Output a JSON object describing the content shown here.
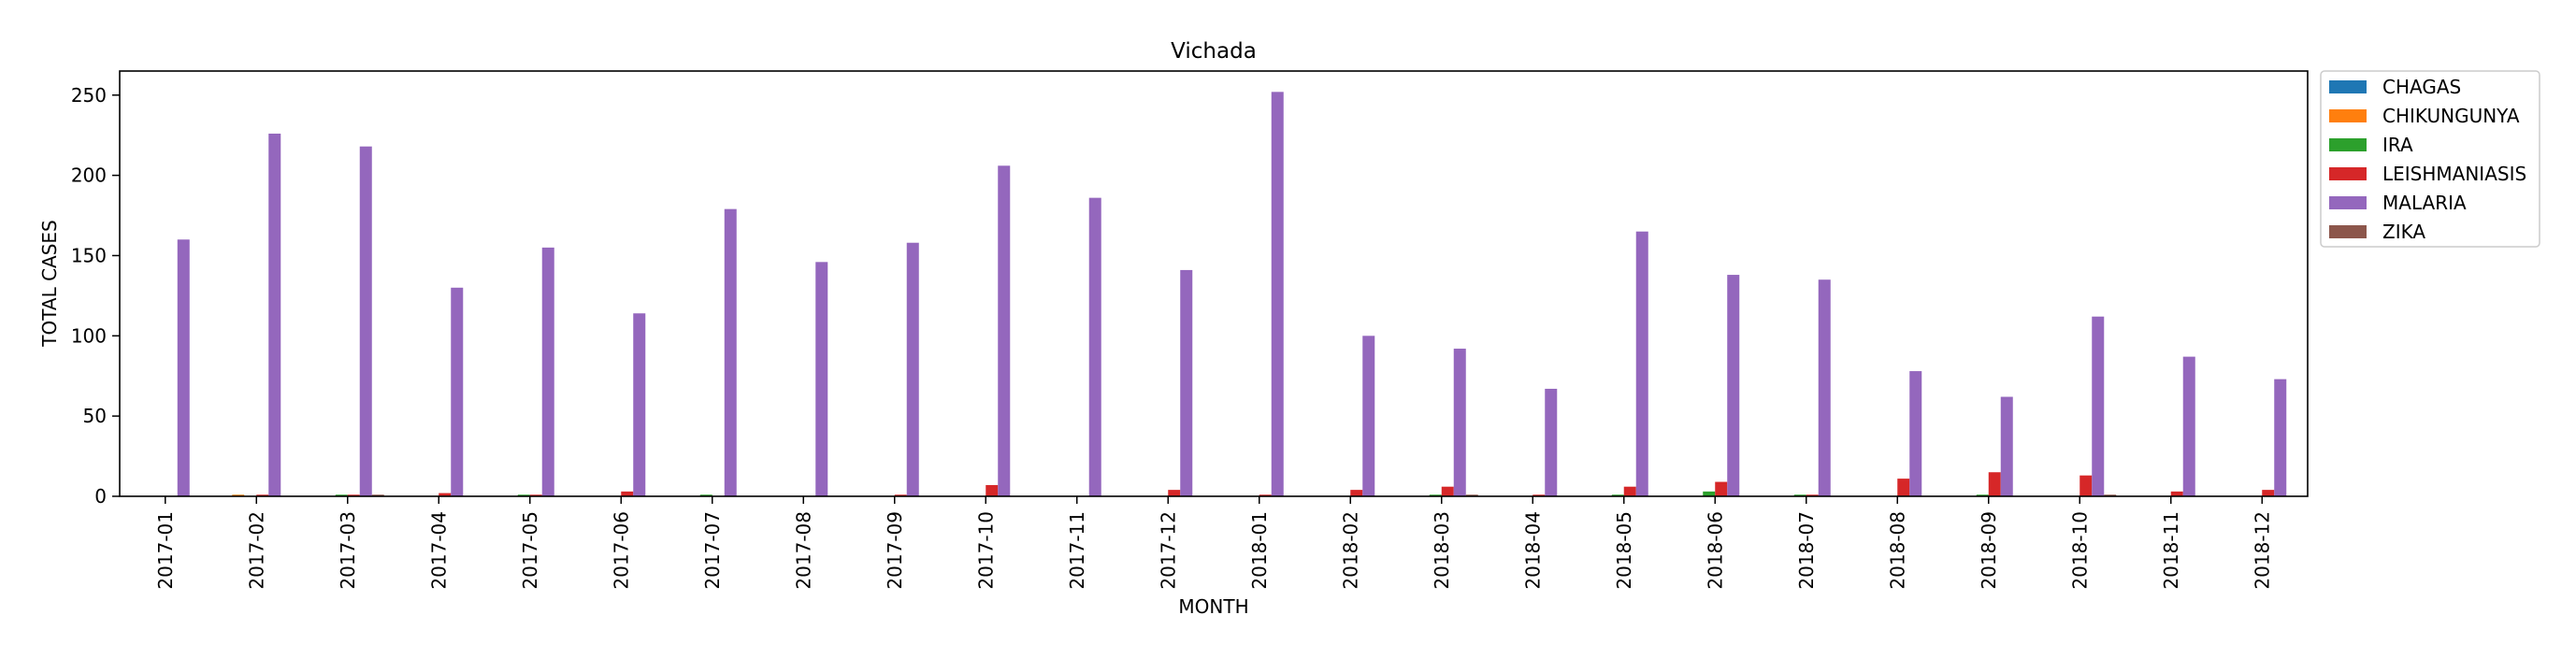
{
  "chart_data": {
    "type": "bar",
    "title": "Vichada",
    "xlabel": "MONTH",
    "ylabel": "TOTAL CASES",
    "ylim": [
      0,
      265
    ],
    "yticks": [
      0,
      50,
      100,
      150,
      200,
      250
    ],
    "grid": false,
    "legend_position": "outside-top-right",
    "categories": [
      "2017-01",
      "2017-02",
      "2017-03",
      "2017-04",
      "2017-05",
      "2017-06",
      "2017-07",
      "2017-08",
      "2017-09",
      "2017-10",
      "2017-11",
      "2017-12",
      "2018-01",
      "2018-02",
      "2018-03",
      "2018-04",
      "2018-05",
      "2018-06",
      "2018-07",
      "2018-08",
      "2018-09",
      "2018-10",
      "2018-11",
      "2018-12"
    ],
    "series": [
      {
        "name": "CHAGAS",
        "color": "#1f77b4",
        "values": [
          0,
          0,
          0,
          0,
          0,
          0,
          0,
          0,
          0,
          0,
          0,
          0,
          0,
          0,
          0,
          0,
          0,
          0,
          0,
          0,
          0,
          0,
          0,
          0
        ]
      },
      {
        "name": "CHIKUNGUNYA",
        "color": "#ff7f0e",
        "values": [
          0,
          1,
          0,
          0,
          0,
          0,
          0,
          0,
          0,
          0,
          0,
          0,
          0,
          0,
          0,
          0,
          0,
          0,
          0,
          0,
          0,
          0,
          0,
          0
        ]
      },
      {
        "name": "IRA",
        "color": "#2ca02c",
        "values": [
          0,
          0,
          1,
          0,
          1,
          0,
          1,
          0,
          0,
          0,
          0,
          0,
          0,
          0,
          1,
          0,
          1,
          3,
          1,
          0,
          1,
          0,
          0,
          0
        ]
      },
      {
        "name": "LEISHMANIASIS",
        "color": "#d62728",
        "values": [
          0,
          1,
          1,
          2,
          1,
          3,
          0,
          0,
          1,
          7,
          0,
          4,
          1,
          4,
          6,
          1,
          6,
          9,
          1,
          11,
          15,
          13,
          3,
          4
        ]
      },
      {
        "name": "MALARIA",
        "color": "#9467bd",
        "values": [
          160,
          226,
          218,
          130,
          155,
          114,
          179,
          146,
          158,
          206,
          186,
          141,
          252,
          100,
          92,
          67,
          165,
          138,
          135,
          78,
          62,
          112,
          87,
          73
        ]
      },
      {
        "name": "ZIKA",
        "color": "#8c564b",
        "values": [
          0,
          0,
          1,
          0,
          0,
          0,
          0,
          0,
          0,
          0,
          0,
          0,
          0,
          0,
          1,
          0,
          0,
          0,
          0,
          0,
          0,
          1,
          0,
          0
        ]
      }
    ]
  }
}
